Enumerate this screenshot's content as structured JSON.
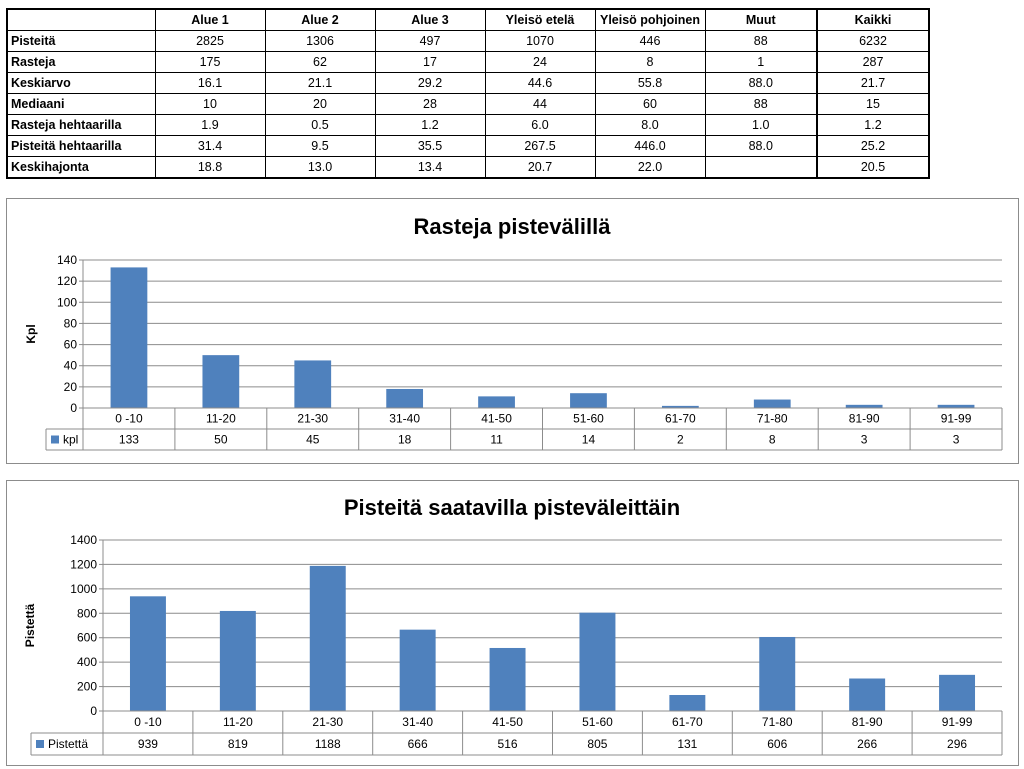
{
  "table": {
    "columns": [
      "",
      "Alue 1",
      "Alue 2",
      "Alue 3",
      "Yleisö etelä",
      "Yleisö pohjoinen",
      "Muut",
      "Kaikki"
    ],
    "rows": [
      {
        "label": "Pisteitä",
        "values": [
          "2825",
          "1306",
          "497",
          "1070",
          "446",
          "88",
          "6232"
        ]
      },
      {
        "label": "Rasteja",
        "values": [
          "175",
          "62",
          "17",
          "24",
          "8",
          "1",
          "287"
        ]
      },
      {
        "label": "Keskiarvo",
        "values": [
          "16.1",
          "21.1",
          "29.2",
          "44.6",
          "55.8",
          "88.0",
          "21.7"
        ]
      },
      {
        "label": "Mediaani",
        "values": [
          "10",
          "20",
          "28",
          "44",
          "60",
          "88",
          "15"
        ]
      },
      {
        "label": "Rasteja hehtaarilla",
        "values": [
          "1.9",
          "0.5",
          "1.2",
          "6.0",
          "8.0",
          "1.0",
          "1.2"
        ]
      },
      {
        "label": "Pisteitä hehtaarilla",
        "values": [
          "31.4",
          "9.5",
          "35.5",
          "267.5",
          "446.0",
          "88.0",
          "25.2"
        ]
      },
      {
        "label": "Keskihajonta",
        "values": [
          "18.8",
          "13.0",
          "13.4",
          "20.7",
          "22.0",
          "",
          "20.5"
        ]
      }
    ]
  },
  "chart_data": [
    {
      "type": "bar",
      "title": "Rasteja pistevälillä",
      "ylabel": "Kpl",
      "xlabel": "",
      "categories": [
        "0 -10",
        "11-20",
        "21-30",
        "31-40",
        "41-50",
        "51-60",
        "61-70",
        "71-80",
        "81-90",
        "91-99"
      ],
      "series": [
        {
          "name": "kpl",
          "values": [
            133,
            50,
            45,
            18,
            11,
            14,
            2,
            8,
            3,
            3
          ]
        }
      ],
      "ylim": [
        0,
        140
      ],
      "yticks": [
        0,
        20,
        40,
        60,
        80,
        100,
        120,
        140
      ],
      "grid": true,
      "legend": "data-table",
      "color": "#4f81bd"
    },
    {
      "type": "bar",
      "title": "Pisteitä saatavilla pisteväleittäin",
      "ylabel": "Pistettä",
      "xlabel": "",
      "categories": [
        "0 -10",
        "11-20",
        "21-30",
        "31-40",
        "41-50",
        "51-60",
        "61-70",
        "71-80",
        "81-90",
        "91-99"
      ],
      "series": [
        {
          "name": "Pistettä",
          "values": [
            939,
            819,
            1188,
            666,
            516,
            805,
            131,
            606,
            266,
            296
          ]
        }
      ],
      "ylim": [
        0,
        1400
      ],
      "yticks": [
        0,
        200,
        400,
        600,
        800,
        1000,
        1200,
        1400
      ],
      "grid": true,
      "legend": "data-table",
      "color": "#4f81bd"
    }
  ]
}
